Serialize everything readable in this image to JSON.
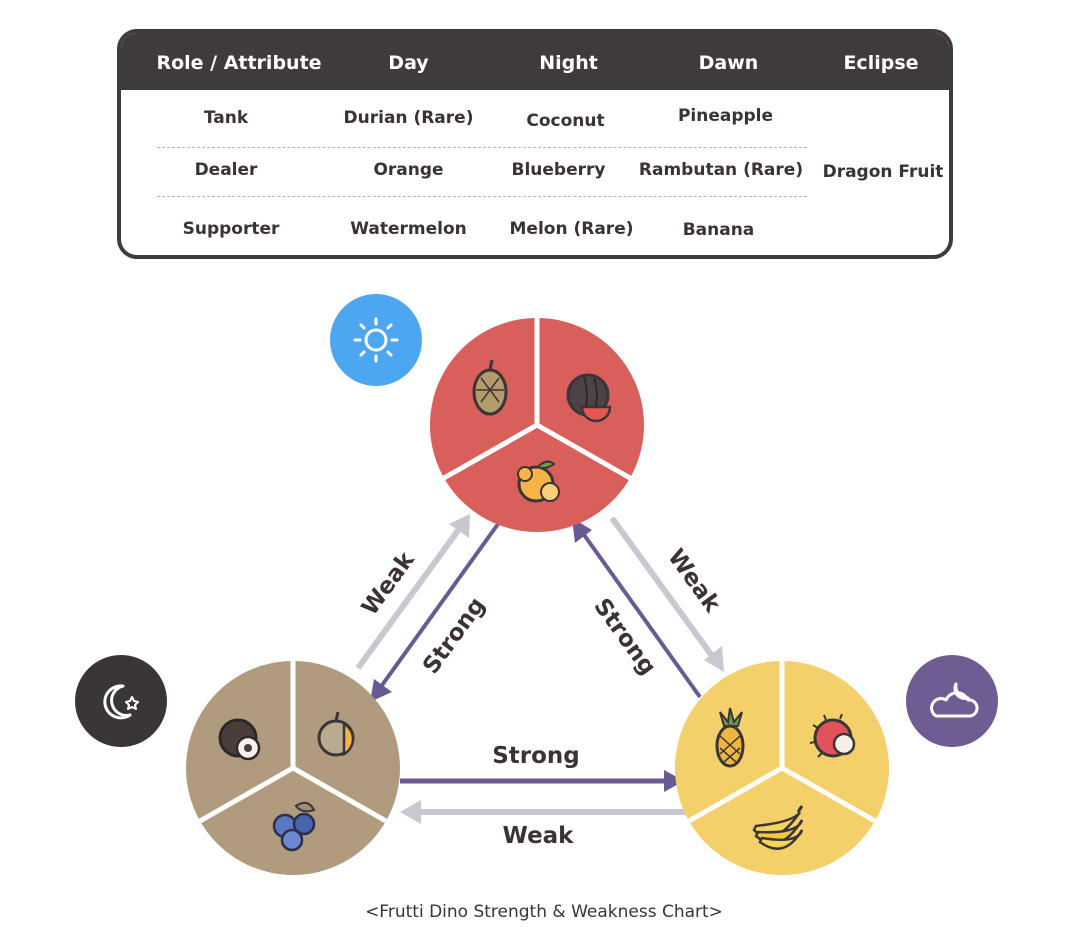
{
  "table": {
    "headers": [
      "Role / Attribute",
      "Day",
      "Night",
      "Dawn",
      "Eclipse"
    ],
    "rows": [
      {
        "role": "Tank",
        "day": "Durian (Rare)",
        "night": "Coconut",
        "dawn": "Pineapple"
      },
      {
        "role": "Dealer",
        "day": "Orange",
        "night": "Blueberry",
        "dawn": "Rambutan (Rare)"
      },
      {
        "role": "Supporter",
        "day": "Watermelon",
        "night": "Melon (Rare)",
        "dawn": "Banana"
      }
    ],
    "eclipse": "Dragon Fruit"
  },
  "diagram": {
    "nodes": {
      "day": {
        "color": "#d95f5b",
        "badge_color": "#4da6f0",
        "badge_icon": "sun-icon",
        "fruits": [
          "durian-icon",
          "watermelon-icon",
          "orange-icon"
        ]
      },
      "night": {
        "color": "#b09b7f",
        "badge_color": "#3a3536",
        "badge_icon": "moon-star-icon",
        "fruits": [
          "coconut-icon",
          "melon-icon",
          "blueberry-icon"
        ]
      },
      "dawn": {
        "color": "#f3d06a",
        "badge_color": "#6e5c92",
        "badge_icon": "cloud-moon-icon",
        "fruits": [
          "pineapple-icon",
          "rambutan-icon",
          "banana-icon"
        ]
      }
    },
    "labels": {
      "weak_day_night": "Weak",
      "strong_day_night": "Strong",
      "weak_day_dawn": "Weak",
      "strong_day_dawn": "Strong",
      "strong_night_dawn": "Strong",
      "weak_night_dawn": "Weak"
    },
    "colors": {
      "strong_arrow": "#6a5a93",
      "weak_arrow": "#c9c7cf",
      "label": "#3b3237"
    }
  },
  "caption": "<Frutti Dino Strength & Weakness Chart>"
}
